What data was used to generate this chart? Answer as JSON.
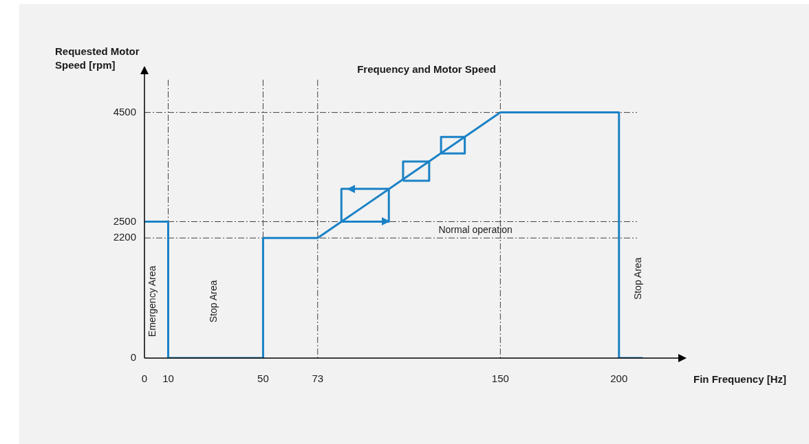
{
  "chart_data": {
    "type": "line",
    "title": "Frequency and Motor Speed",
    "xlabel": "Fin Frequency [Hz]",
    "ylabel": "Requested Motor Speed [rpm]",
    "xlim": [
      0,
      225
    ],
    "xticks": [
      0,
      10,
      50,
      73,
      150,
      200
    ],
    "ylim": [
      0,
      5200
    ],
    "yticks": [
      0,
      2200,
      2500,
      4500
    ],
    "grid": false,
    "legend": false,
    "marker": "none",
    "line_style": "solid",
    "series": [
      {
        "color": "#1a82c6",
        "x": [
          0,
          10,
          10,
          50,
          50,
          73,
          150,
          200,
          200,
          210
        ],
        "values": [
          2500,
          2500,
          0,
          0,
          2200,
          2200,
          4500,
          4500,
          0,
          0
        ]
      },
      {
        "color": "#1a82c6",
        "x": [
          83,
          83,
          103
        ],
        "values": [
          2500,
          3100,
          3100
        ]
      },
      {
        "color": "#1a82c6",
        "x": [
          83,
          103,
          103
        ],
        "values": [
          2500,
          2500,
          3100
        ]
      },
      {
        "color": "#1a82c6",
        "x": [
          109,
          109,
          120
        ],
        "values": [
          3250,
          3600,
          3600
        ]
      },
      {
        "color": "#1a82c6",
        "x": [
          109,
          120,
          120
        ],
        "values": [
          3250,
          3250,
          3600
        ]
      },
      {
        "color": "#1a82c6",
        "x": [
          125,
          125,
          135
        ],
        "values": [
          3750,
          4050,
          4050
        ]
      },
      {
        "color": "#1a82c6",
        "x": [
          125,
          135,
          135
        ],
        "values": [
          3750,
          3750,
          4050
        ]
      }
    ],
    "ref_lines": [
      {
        "axis": "x",
        "value": 10,
        "color": "#404040",
        "line_style": "dashed"
      },
      {
        "axis": "x",
        "value": 50,
        "color": "#404040",
        "line_style": "dashed"
      },
      {
        "axis": "x",
        "value": 73,
        "color": "#404040",
        "line_style": "dashed"
      },
      {
        "axis": "x",
        "value": 150,
        "color": "#404040",
        "line_style": "dashed"
      },
      {
        "axis": "y",
        "value": 2200,
        "color": "#404040",
        "line_style": "dashed"
      },
      {
        "axis": "y",
        "value": 2500,
        "color": "#404040",
        "line_style": "dashed"
      },
      {
        "axis": "y",
        "value": 4500,
        "color": "#404040",
        "line_style": "dashed"
      }
    ],
    "annotations": [
      "Emergency Area",
      "Stop Area",
      "Stop Area",
      "Normal operation"
    ]
  }
}
